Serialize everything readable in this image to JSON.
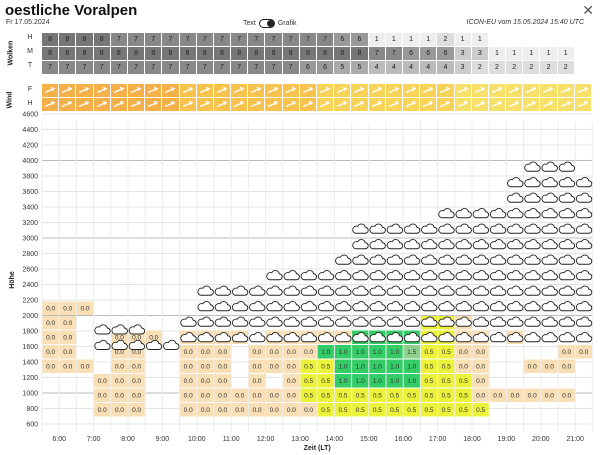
{
  "header": {
    "title": "oestliche Voralpen",
    "date": "Fr 17.05.2024",
    "toggle_left": "Text",
    "toggle_right": "Grafik",
    "model_info": "ICON-EU vom 15.05.2024 15:40 UTC",
    "close_icon": "close-icon"
  },
  "clouds": {
    "label": "Wolken",
    "rows": [
      {
        "name": "H",
        "values": [
          "8",
          "8",
          "8",
          "8",
          "7",
          "7",
          "7",
          "7",
          "7",
          "7",
          "7",
          "7",
          "7",
          "7",
          "7",
          "7",
          "7",
          "6",
          "6",
          "1",
          "1",
          "1",
          "1",
          "2",
          "1",
          "1",
          "",
          "",
          "",
          "",
          "",
          ""
        ]
      },
      {
        "name": "M",
        "values": [
          "8",
          "8",
          "8",
          "8",
          "8",
          "8",
          "8",
          "8",
          "8",
          "8",
          "8",
          "8",
          "8",
          "8",
          "8",
          "8",
          "8",
          "8",
          "8",
          "7",
          "7",
          "6",
          "6",
          "6",
          "3",
          "3",
          "1",
          "1",
          "1",
          "1",
          "1",
          ""
        ]
      },
      {
        "name": "T",
        "values": [
          "7",
          "7",
          "7",
          "7",
          "7",
          "7",
          "7",
          "7",
          "7",
          "7",
          "7",
          "7",
          "7",
          "7",
          "7",
          "6",
          "6",
          "5",
          "5",
          "4",
          "4",
          "4",
          "4",
          "4",
          "3",
          "2",
          "2",
          "2",
          "2",
          "2",
          "2",
          ""
        ]
      }
    ]
  },
  "wind": {
    "label": "Wind",
    "rows": [
      "F",
      "H"
    ],
    "colors": [
      "#f5b04a",
      "#f7c24e",
      "#f8d35a",
      "#f6e06a"
    ]
  },
  "chart_data": {
    "type": "heatmap",
    "xlabel": "Zeit (LT)",
    "ylabel": "Höhe",
    "x_ticks": [
      "6:00",
      "7:00",
      "8:00",
      "9:00",
      "10:00",
      "11:00",
      "12:00",
      "13:00",
      "14:00",
      "15:00",
      "16:00",
      "17:00",
      "18:00",
      "19:00",
      "20:00",
      "21:00"
    ],
    "y_ticks": [
      "600",
      "800",
      "1000",
      "1200",
      "1400",
      "1600",
      "1800",
      "2000",
      "2200",
      "2400",
      "2600",
      "2800",
      "3000",
      "3200",
      "3400",
      "3600",
      "3800",
      "4000",
      "4200",
      "4400",
      "4600"
    ],
    "ylim": [
      600,
      4600
    ],
    "x_start": "5:30",
    "x_step_hours": 0.5,
    "legend_colors": {
      "0.0": "#f8dfb6",
      "0.5": "#ecf23a",
      "1.0": "#33cc66",
      "1.5": "#8ed08e"
    },
    "values": [
      [
        null,
        null,
        null,
        null,
        null,
        null,
        null,
        null,
        null,
        null,
        null,
        null,
        null,
        null,
        null,
        null,
        null,
        null,
        null,
        null,
        null,
        null,
        null,
        null,
        null,
        null,
        null,
        null,
        null,
        null,
        null,
        null
      ],
      [
        null,
        null,
        null,
        "0.0",
        "0.0",
        "0.0",
        null,
        null,
        "0.0",
        "0.0",
        "0.0",
        "0.0",
        "0.0",
        "0.0",
        "0.0",
        "0.0",
        "0.5",
        "0.5",
        "0.5",
        "0.5",
        "0.5",
        "0.5",
        "0.5",
        "0.5",
        "0.5",
        "0.5",
        null,
        null,
        null,
        null,
        null,
        null
      ],
      [
        null,
        null,
        null,
        "0.0",
        "0.0",
        "0.0",
        null,
        null,
        "0.0",
        "0.0",
        "0.0",
        "0.0",
        "0.0",
        "0.0",
        "0.0",
        "0.5",
        "0.5",
        "0.5",
        "0.5",
        "0.5",
        "0.5",
        "0.5",
        "0.5",
        "0.5",
        "0.5",
        "0.0",
        "0.0",
        "0.0",
        "0.0",
        "0.0",
        "0.0",
        null
      ],
      [
        null,
        null,
        null,
        "0.0",
        "0.0",
        "0.0",
        null,
        null,
        "0.0",
        "0.0",
        "0.0",
        null,
        "0.0",
        null,
        "0.0",
        "0.5",
        "0.5",
        "1.0",
        "1.0",
        "1.0",
        "1.0",
        "1.0",
        "0.5",
        "0.5",
        "0.5",
        "0.0",
        null,
        null,
        null,
        null,
        null,
        null
      ],
      [
        "0.0",
        "0.0",
        "0.0",
        null,
        "0.0",
        "0.0",
        null,
        null,
        "0.0",
        "0.0",
        "0.0",
        null,
        "0.0",
        "0.0",
        "0.0",
        "0.5",
        "0.5",
        "1.0",
        "1.0",
        "1.0",
        "1.0",
        "1.0",
        "0.5",
        "0.5",
        "0.0",
        "0.0",
        null,
        null,
        "0.0",
        "0.0",
        "0.0",
        null
      ],
      [
        "0.0",
        "0.0",
        null,
        null,
        "0.0",
        "0.0",
        null,
        null,
        "0.0",
        "0.0",
        "0.0",
        null,
        "0.0",
        "0.0",
        "0.0",
        "0.0",
        "1.0",
        "1.0",
        "1.0",
        "1.0",
        "1.0",
        "1.5",
        "0.5",
        "0.5",
        "0.0",
        "0.0",
        null,
        null,
        null,
        null,
        "0.0",
        "0.0"
      ],
      [
        "0.0",
        "0.0",
        null,
        null,
        "0.0",
        "0.0",
        "0.0",
        null,
        "0.0",
        "0.0",
        "0.0",
        "0.0",
        null,
        "0.0",
        "0.0",
        "0.0",
        "0.0",
        "0.0",
        "1.0",
        "1.0",
        "1.0",
        "1.0",
        "0.5",
        "0.5",
        "0.0",
        "0.0",
        null,
        "0.0",
        null,
        null,
        null,
        null
      ],
      [
        "0.0",
        "0.0",
        null,
        null,
        null,
        null,
        null,
        null,
        null,
        null,
        null,
        null,
        null,
        null,
        null,
        null,
        null,
        null,
        null,
        null,
        null,
        null,
        "0.5",
        "0.5",
        "0.0",
        null,
        null,
        null,
        null,
        null,
        null,
        null
      ],
      [
        "0.0",
        "0.0",
        "0.0",
        null,
        null,
        null,
        null,
        null,
        null,
        null,
        null,
        null,
        null,
        null,
        null,
        null,
        null,
        null,
        null,
        null,
        null,
        null,
        null,
        null,
        null,
        null,
        null,
        null,
        null,
        null,
        null,
        null
      ]
    ],
    "value_row_altitudes": [
      600,
      800,
      900,
      1100,
      1300,
      1400,
      1600,
      1800,
      1900
    ],
    "clouds": {
      "cols_start": 3,
      "top_altitudes": [
        1900,
        1900,
        1900,
        1600,
        1600,
        1900,
        2300,
        2300,
        2300,
        2300,
        2600,
        2600,
        2600,
        2600,
        2700,
        3100,
        3100,
        3100,
        3100,
        3100,
        3300,
        3300,
        3300,
        3300,
        3800,
        3900,
        3900,
        3900,
        3800,
        3800,
        3700,
        3700
      ],
      "bottom_altitudes": [
        1600,
        1600,
        1600,
        1600,
        1600,
        1700,
        1700,
        1700,
        1700,
        1700,
        1700,
        1700,
        1700,
        1700,
        1700,
        1700,
        1700,
        1700,
        1700,
        1700,
        1700,
        1700,
        1700,
        1700,
        1700,
        1700,
        1700,
        1700,
        1700,
        1700,
        1700,
        1700
      ]
    }
  }
}
